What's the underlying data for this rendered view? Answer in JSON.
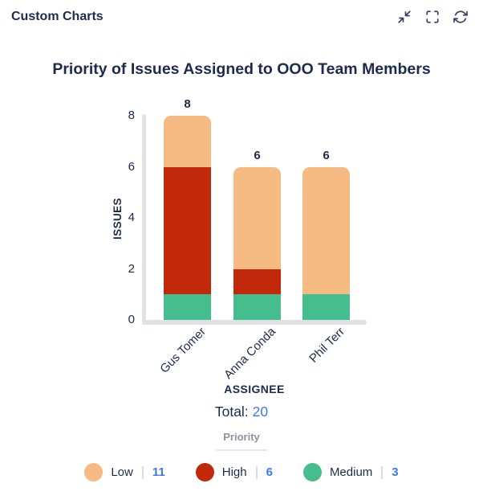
{
  "header": {
    "title": "Custom Charts",
    "icons": [
      {
        "name": "collapse"
      },
      {
        "name": "fullscreen"
      },
      {
        "name": "refresh"
      }
    ]
  },
  "chart_data": {
    "type": "bar",
    "stacked": true,
    "title": "Priority of Issues Assigned to OOO Team Members",
    "categories": [
      "Gus Tomer",
      "Anna Conda",
      "Phil Terr"
    ],
    "series": [
      {
        "name": "Medium",
        "color": "#45bd8c",
        "values": [
          1,
          1,
          1
        ]
      },
      {
        "name": "High",
        "color": "#c2290a",
        "values": [
          5,
          1,
          0
        ]
      },
      {
        "name": "Low",
        "color": "#f6ba83",
        "values": [
          2,
          4,
          5
        ]
      }
    ],
    "bar_totals": [
      8,
      6,
      6
    ],
    "xlabel": "ASSIGNEE",
    "ylabel": "ISSUES",
    "yticks": [
      0,
      2,
      4,
      6,
      8
    ],
    "ylim": [
      0,
      8
    ],
    "grid": false,
    "legend_position": "bottom"
  },
  "summary": {
    "total_label": "Total:",
    "total_value": "20"
  },
  "legend": {
    "title": "Priority",
    "items": [
      {
        "label": "Low",
        "count": "11",
        "color": "#f6ba83"
      },
      {
        "label": "High",
        "count": "6",
        "color": "#c2290a"
      },
      {
        "label": "Medium",
        "count": "3",
        "color": "#45bd8c"
      }
    ]
  },
  "colors": {
    "text_navy": "#1c2b4d",
    "icon_navy": "#344563",
    "accent_blue": "#3b78ed",
    "axis_gray": "#dfe1e6",
    "muted_gray": "#8a94a4"
  }
}
